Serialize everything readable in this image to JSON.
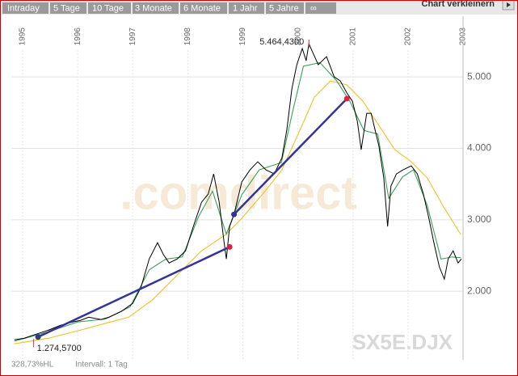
{
  "toolbar": {
    "tabs": [
      "Intraday",
      "5 Tage",
      "10 Tage",
      "3 Monate",
      "6 Monate",
      "1 Jahr",
      "5 Jahre",
      "∞"
    ],
    "action": "Chart verkleinern"
  },
  "footer": {
    "stats": "328,73%HL",
    "interval": "Intervall: 1 Tag"
  },
  "chart_data": {
    "type": "line",
    "watermark": ".comdirect",
    "symbol": "SX5E.DJX",
    "xlim": [
      1994.8,
      2003.0
    ],
    "xticks": [
      1995,
      1996,
      1997,
      1998,
      1999,
      2000,
      2001,
      2002,
      2003
    ],
    "ylim": [
      1040,
      5850
    ],
    "yticks": [
      {
        "value": 2000,
        "label": "2.000"
      },
      {
        "value": 3000,
        "label": "3.000"
      },
      {
        "value": 4000,
        "label": "4.000"
      },
      {
        "value": 5000,
        "label": "5.000"
      }
    ],
    "grid": true,
    "series": [
      {
        "color": "#000000",
        "x": [
          1994.85,
          1995.03,
          1995.25,
          1995.47,
          1995.69,
          1995.91,
          1996.05,
          1996.2,
          1996.42,
          1996.57,
          1996.79,
          1997.0,
          1997.15,
          1997.3,
          1997.45,
          1997.56,
          1997.66,
          1997.81,
          1997.96,
          1998.1,
          1998.25,
          1998.37,
          1998.47,
          1998.57,
          1998.66,
          1998.7,
          1998.76,
          1998.84,
          1998.98,
          1999.13,
          1999.27,
          1999.42,
          1999.57,
          1999.71,
          1999.8,
          1999.89,
          1999.98,
          2000.08,
          2000.15,
          2000.2,
          2000.27,
          2000.37,
          2000.52,
          2000.66,
          2000.77,
          2000.89,
          2000.99,
          2001.08,
          2001.15,
          2001.25,
          2001.33,
          2001.47,
          2001.56,
          2001.63,
          2001.69,
          2001.79,
          2001.91,
          2002.06,
          2002.17,
          2002.28,
          2002.38,
          2002.47,
          2002.57,
          2002.66,
          2002.73,
          2002.82,
          2002.91,
          2002.97
        ],
        "values": [
          1320,
          1343,
          1400,
          1456,
          1524,
          1570,
          1592,
          1637,
          1604,
          1637,
          1717,
          1830,
          2057,
          2453,
          2680,
          2510,
          2396,
          2453,
          2566,
          2906,
          3246,
          3359,
          3642,
          3246,
          2680,
          2453,
          2906,
          3076,
          3529,
          3699,
          3812,
          3699,
          3642,
          3869,
          4265,
          4831,
          5171,
          5398,
          5227,
          5464.43,
          5341,
          5171,
          5284,
          5001,
          4944,
          4775,
          4661,
          4378,
          3982,
          4491,
          4491,
          4039,
          3586,
          2906,
          3472,
          3642,
          3699,
          3755,
          3642,
          3359,
          3019,
          2680,
          2340,
          2170,
          2453,
          2566,
          2396,
          2453
        ]
      },
      {
        "color": "#3aa05a",
        "x": [
          1994.85,
          1995.5,
          1996.0,
          1996.5,
          1996.95,
          1997.3,
          1997.6,
          1997.9,
          1998.2,
          1998.45,
          1998.7,
          1998.98,
          1999.3,
          1999.7,
          1999.9,
          2000.1,
          2000.4,
          2000.7,
          2000.95,
          2001.2,
          2001.45,
          2001.65,
          2001.9,
          2002.1,
          2002.35,
          2002.6,
          2002.8,
          2002.96
        ],
        "values": [
          1300,
          1440,
          1570,
          1610,
          1780,
          2300,
          2450,
          2480,
          3050,
          3400,
          2800,
          3350,
          3700,
          3800,
          4500,
          5150,
          5200,
          4950,
          4650,
          4250,
          4200,
          3300,
          3600,
          3700,
          3200,
          2450,
          2480,
          2470
        ]
      },
      {
        "color": "#f0c020",
        "x": [
          1994.85,
          1995.47,
          1996.05,
          1996.49,
          1996.93,
          1997.37,
          1997.81,
          1998.25,
          1998.69,
          1998.98,
          1999.42,
          1999.71,
          2000.01,
          2000.3,
          2000.59,
          2000.89,
          2001.18,
          2001.47,
          2001.76,
          2002.06,
          2002.35,
          2002.64,
          2002.96
        ],
        "values": [
          1264,
          1343,
          1456,
          1547,
          1638,
          1887,
          2227,
          2566,
          2793,
          3019,
          3416,
          3699,
          4208,
          4718,
          4945,
          4888,
          4661,
          4321,
          3982,
          3812,
          3586,
          3189,
          2793
        ]
      }
    ],
    "trendlines": [
      {
        "color": "#333399",
        "x": [
          1995.28,
          1998.76
        ],
        "values": [
          1360,
          2620
        ],
        "point_colors": [
          "#333399",
          "#dd2244"
        ]
      },
      {
        "color": "#333399",
        "x": [
          1998.84,
          2000.89
        ],
        "values": [
          3076,
          4695
        ],
        "point_colors": [
          "#333399",
          "#dd2244"
        ]
      }
    ],
    "annotations": [
      {
        "label": "5.464,4300",
        "x": 2000.2,
        "value": 5464.43,
        "side": "left"
      },
      {
        "label": "1.274,5700",
        "x": 1995.2,
        "value": 1274.57,
        "side": "right"
      }
    ]
  }
}
